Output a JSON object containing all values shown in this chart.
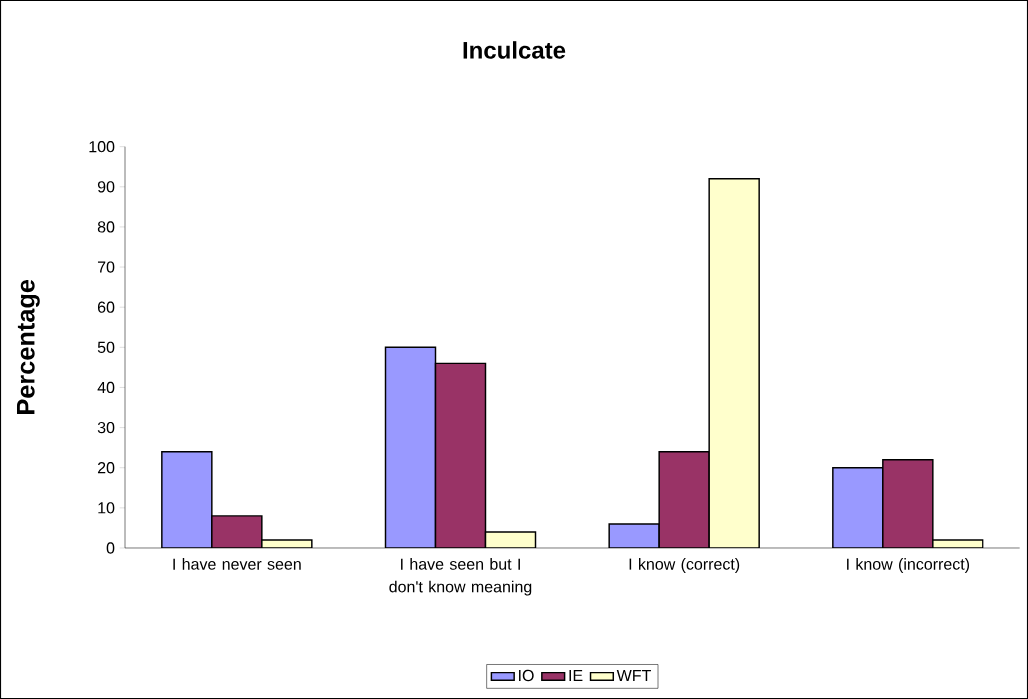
{
  "chart_data": {
    "type": "bar",
    "title": "Inculcate",
    "ylabel": "Percentage",
    "categories": [
      "I have never seen",
      "I have seen but I don't know meaning",
      "I know (correct)",
      "I know (incorrect)"
    ],
    "series": [
      {
        "name": "IO",
        "color": "#9999ff",
        "values": [
          24,
          50,
          6,
          20
        ]
      },
      {
        "name": "IE",
        "color": "#993366",
        "values": [
          8,
          46,
          24,
          22
        ]
      },
      {
        "name": "WFT",
        "color": "#ffffcc",
        "values": [
          2,
          4,
          92,
          2
        ]
      }
    ],
    "ylim": [
      0,
      100
    ],
    "yticks": [
      0,
      10,
      20,
      30,
      40,
      50,
      60,
      70,
      80,
      90,
      100
    ],
    "grid": false,
    "legend": "bottom"
  }
}
